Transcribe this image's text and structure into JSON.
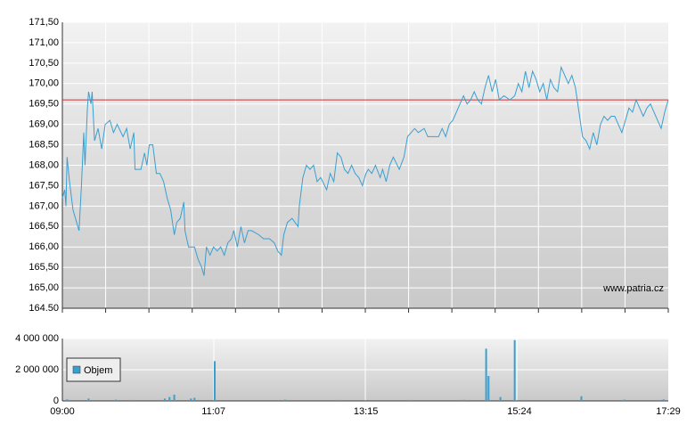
{
  "chart_data": [
    {
      "type": "line",
      "xlim": [
        "09:00",
        "17:29"
      ],
      "xticks": [
        "09:00",
        "11:07",
        "13:15",
        "15:24",
        "17:29"
      ],
      "ylim": [
        164.5,
        171.5
      ],
      "yticks": [
        {
          "value": 164.5,
          "label": "164.50"
        },
        {
          "value": 165,
          "label": "165,00"
        },
        {
          "value": 165.5,
          "label": "165,50"
        },
        {
          "value": 166,
          "label": "166,00"
        },
        {
          "value": 166.5,
          "label": "166,50"
        },
        {
          "value": 167,
          "label": "167,00"
        },
        {
          "value": 167.5,
          "label": "167,50"
        },
        {
          "value": 168,
          "label": "168,00"
        },
        {
          "value": 168.5,
          "label": "168,50"
        },
        {
          "value": 169,
          "label": "169,00"
        },
        {
          "value": 169.5,
          "label": "169,50"
        },
        {
          "value": 170,
          "label": "170,00"
        },
        {
          "value": 170.5,
          "label": "170,50"
        },
        {
          "value": 171,
          "label": "171,00"
        },
        {
          "value": 171.5,
          "label": "171,50"
        }
      ],
      "grid": true,
      "color": "#3a9fd0",
      "reference_line": 169.6,
      "reference_color": "#d03030",
      "watermark": "www.patria.cz",
      "x": [
        "09:00",
        "09:02",
        "09:03",
        "09:04",
        "09:06",
        "09:09",
        "09:12",
        "09:14",
        "09:16",
        "09:18",
        "09:19",
        "09:21",
        "09:22",
        "09:24",
        "09:25",
        "09:27",
        "09:30",
        "09:33",
        "09:36",
        "09:40",
        "09:43",
        "09:46",
        "09:51",
        "09:54",
        "09:57",
        "10:00",
        "10:01",
        "10:06",
        "10:09",
        "10:11",
        "10:13",
        "10:16",
        "10:19",
        "10:22",
        "10:25",
        "10:28",
        "10:31",
        "10:34",
        "10:36",
        "10:39",
        "10:42",
        "10:43",
        "10:46",
        "10:51",
        "10:54",
        "10:57",
        "10:59",
        "11:01",
        "11:04",
        "11:07",
        "11:10",
        "11:13",
        "11:16",
        "11:19",
        "11:22",
        "11:24",
        "11:27",
        "11:30",
        "11:33",
        "11:36",
        "11:39",
        "11:45",
        "11:49",
        "11:54",
        "11:58",
        "12:01",
        "12:04",
        "12:06",
        "12:09",
        "12:13",
        "12:18",
        "12:19",
        "12:22",
        "12:25",
        "12:28",
        "12:31",
        "12:34",
        "12:37",
        "12:42",
        "12:45",
        "12:48",
        "12:51",
        "12:54",
        "12:57",
        "13:00",
        "13:03",
        "13:06",
        "13:09",
        "13:12",
        "13:15",
        "13:17",
        "13:20",
        "13:23",
        "13:27",
        "13:29",
        "13:32",
        "13:35",
        "13:38",
        "13:43",
        "13:47",
        "13:50",
        "13:53",
        "13:56",
        "13:59",
        "14:04",
        "14:07",
        "14:11",
        "14:16",
        "14:19",
        "14:22",
        "14:25",
        "14:28",
        "14:31",
        "14:34",
        "14:37",
        "14:40",
        "14:43",
        "14:46",
        "14:49",
        "14:52",
        "14:55",
        "14:58",
        "15:01",
        "15:04",
        "15:07",
        "15:11",
        "15:16",
        "15:20",
        "15:23",
        "15:26",
        "15:29",
        "15:32",
        "15:35",
        "15:38",
        "15:41",
        "15:44",
        "15:47",
        "15:50",
        "15:53",
        "15:56",
        "15:59",
        "16:02",
        "16:05",
        "16:08",
        "16:11",
        "16:14",
        "16:17",
        "16:20",
        "16:23",
        "16:26",
        "16:29",
        "16:32",
        "16:35",
        "16:38",
        "16:41",
        "16:44",
        "16:47",
        "16:50",
        "16:53",
        "16:56",
        "16:59",
        "17:02",
        "17:05",
        "17:08",
        "17:11",
        "17:14",
        "17:17",
        "17:20",
        "17:23",
        "17:26",
        "17:29"
      ],
      "values": [
        167.2,
        167.4,
        167.0,
        168.2,
        167.6,
        166.9,
        166.6,
        166.4,
        167.5,
        168.8,
        168.0,
        169.4,
        169.8,
        169.5,
        169.8,
        168.6,
        168.9,
        168.4,
        169.0,
        169.1,
        168.8,
        169.0,
        168.7,
        168.9,
        168.4,
        168.8,
        167.9,
        167.9,
        168.3,
        168.0,
        168.5,
        168.5,
        167.8,
        167.8,
        167.6,
        167.2,
        166.9,
        166.3,
        166.6,
        166.7,
        167.1,
        166.4,
        166.0,
        166.0,
        165.7,
        165.5,
        165.3,
        166.0,
        165.8,
        166.0,
        165.9,
        166.0,
        165.8,
        166.1,
        166.2,
        166.4,
        166.0,
        166.5,
        166.1,
        166.4,
        166.4,
        166.3,
        166.2,
        166.2,
        166.1,
        165.9,
        165.8,
        166.3,
        166.6,
        166.7,
        166.5,
        167.0,
        167.7,
        168.0,
        167.9,
        168.0,
        167.6,
        167.7,
        167.4,
        167.8,
        167.6,
        168.3,
        168.2,
        167.9,
        167.8,
        168.0,
        167.8,
        167.7,
        167.5,
        167.8,
        167.9,
        167.8,
        168.0,
        167.7,
        167.9,
        167.6,
        168.0,
        168.2,
        167.9,
        168.2,
        168.7,
        168.8,
        168.9,
        168.8,
        168.9,
        168.7,
        168.7,
        168.7,
        168.9,
        168.7,
        169.0,
        169.1,
        169.3,
        169.5,
        169.7,
        169.5,
        169.6,
        169.8,
        169.6,
        169.5,
        169.9,
        170.2,
        169.8,
        170.1,
        169.6,
        169.7,
        169.6,
        169.7,
        170.0,
        169.8,
        170.3,
        169.9,
        170.3,
        170.1,
        169.8,
        170.0,
        169.6,
        170.1,
        169.9,
        169.8,
        170.4,
        170.2,
        170.0,
        170.2,
        169.9,
        169.3,
        168.7,
        168.6,
        168.4,
        168.8,
        168.5,
        169.0,
        169.2,
        169.1,
        169.2,
        169.2,
        169.0,
        168.8,
        169.1,
        169.4,
        169.3,
        169.6,
        169.4,
        169.2,
        169.4,
        169.5,
        169.3,
        169.1,
        168.9,
        169.3,
        169.6
      ]
    },
    {
      "type": "bar",
      "xlim": [
        "09:00",
        "17:29"
      ],
      "xticks": [
        "09:00",
        "11:07",
        "13:15",
        "15:24",
        "17:29"
      ],
      "ylim": [
        0,
        4000000
      ],
      "yticks": [
        0,
        {
          "value": 2000000,
          "label": "2 000 000"
        },
        {
          "value": 4000000,
          "label": "4 000 000"
        }
      ],
      "grid": true,
      "legend": "left",
      "x": [
        "09:04",
        "09:22",
        "09:45",
        "10:00",
        "10:26",
        "10:30",
        "10:34",
        "10:48",
        "10:51",
        "11:08",
        "12:07",
        "12:52",
        "13:52",
        "14:37",
        "14:56",
        "14:58",
        "15:08",
        "15:20",
        "15:29",
        "16:16",
        "16:52",
        "17:25"
      ],
      "series": [
        {
          "name": "Objem",
          "color": "#3a9fd0",
          "values": [
            100000,
            150000,
            80000,
            60000,
            150000,
            250000,
            400000,
            150000,
            200000,
            2550000,
            80000,
            60000,
            60000,
            70000,
            3350000,
            1600000,
            250000,
            3900000,
            60000,
            300000,
            80000,
            100000
          ]
        }
      ]
    }
  ]
}
